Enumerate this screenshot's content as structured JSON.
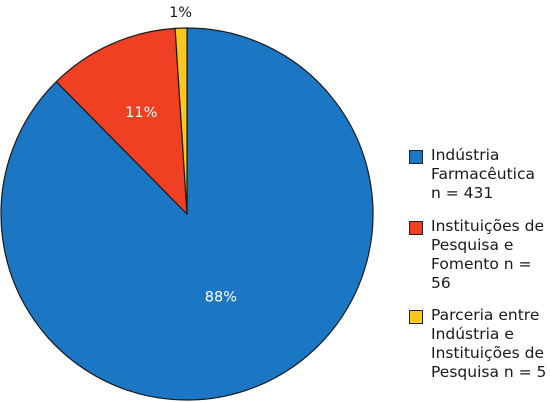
{
  "chart_data": {
    "type": "pie",
    "slices": [
      {
        "label": "Indústria\nFarmacêutica\nn = 431",
        "value": 431,
        "pct_label": "88%",
        "color": "#1b76c4"
      },
      {
        "label": "Instituições de\nPesquisa e\nFomento n = 56",
        "value": 56,
        "pct_label": "11%",
        "color": "#ef4023"
      },
      {
        "label": "Parceria entre\nIndústria e\nInstituições de\nPesquisa n = 5",
        "value": 5,
        "pct_label": "1%",
        "color": "#f9c71d"
      }
    ],
    "start_angle_deg": 0,
    "direction": "clockwise",
    "legend_position": "right"
  }
}
